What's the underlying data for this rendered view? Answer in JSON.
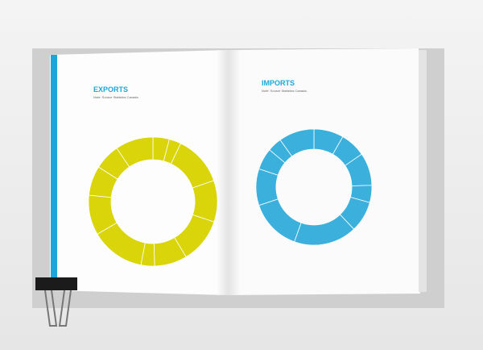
{
  "chart_data": [
    {
      "type": "pie",
      "title": "EXPORTS",
      "subtitle": "Note: Source Statistics Canada.",
      "color": "#d9d50a",
      "values": [
        4.1,
        3.0,
        12.6,
        10.4,
        11.3,
        8.2,
        3.4,
        13.6,
        10.0,
        7.4,
        6.5,
        9.5
      ]
    },
    {
      "type": "pie",
      "title": "IMPORTS",
      "subtitle": "Note: Source Statistics Canada.",
      "color": "#3cb0dc",
      "values": [
        8.3,
        7.1,
        9.1,
        4.8,
        8.6,
        17.6,
        14.4,
        10.2,
        6.0,
        4.0,
        9.9
      ]
    }
  ]
}
